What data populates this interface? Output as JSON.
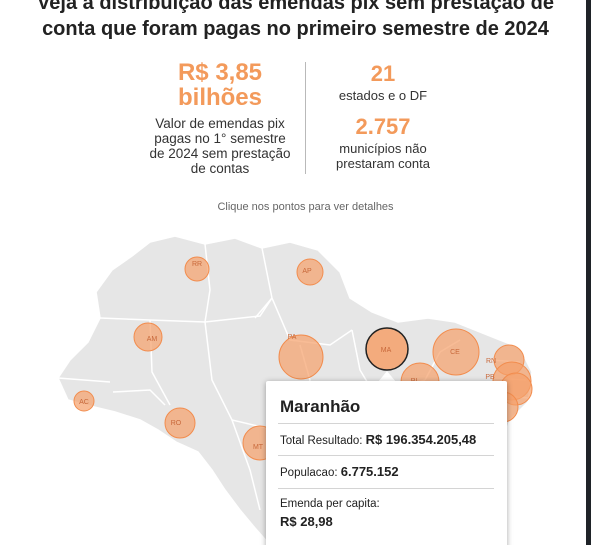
{
  "headline": {
    "line1": "Veja a distribuição das emendas pix sem prestação de",
    "line2": "conta que foram pagas no primeiro semestre de 2024"
  },
  "stats": {
    "total": {
      "value_line1": "R$ 3,85",
      "value_line2": "bilhões",
      "desc_lines": [
        "Valor de emendas pix",
        "pagas no 1° semestre",
        "de 2024 sem prestação",
        "de contas"
      ]
    },
    "states": {
      "value": "21",
      "desc": "estados e o DF"
    },
    "municipalities": {
      "value": "2.757",
      "desc_lines": [
        "municípios não",
        "prestaram conta"
      ]
    }
  },
  "hint": "Clique nos pontos para ver detalhes",
  "map": {
    "states": [
      "RR",
      "AP",
      "AM",
      "PA",
      "MA",
      "CE",
      "RN",
      "PB",
      "PI",
      "AC",
      "RO",
      "MT"
    ],
    "selected": "MA",
    "colors": {
      "bubble": "#f5a06a",
      "land": "#e6e6e6",
      "border": "#ffffff",
      "accent": "#f39a5b"
    }
  },
  "tooltip": {
    "title": "Maranhão",
    "total_label": "Total Resultado:",
    "total_value": "R$ 196.354.205,48",
    "pop_label": "Populacao:",
    "pop_value": "6.775.152",
    "per_capita_label": "Emenda per capita:",
    "per_capita_value": "R$ 28,98"
  }
}
